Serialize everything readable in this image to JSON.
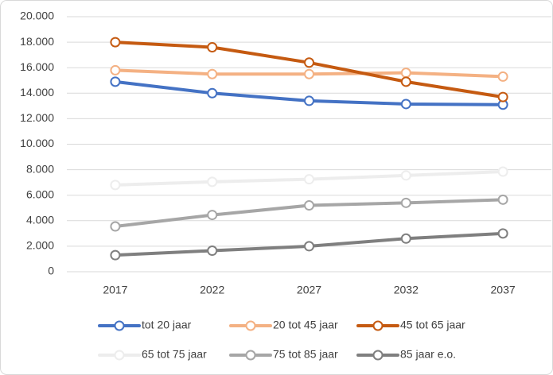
{
  "chart_data": {
    "type": "line",
    "categories": [
      "2017",
      "2022",
      "2027",
      "2032",
      "2037"
    ],
    "series": [
      {
        "name": "tot 20 jaar",
        "color": "#4472c4",
        "values": [
          14900,
          14000,
          13400,
          13150,
          13100
        ]
      },
      {
        "name": "20 tot 45 jaar",
        "color": "#f4b183",
        "values": [
          15800,
          15500,
          15500,
          15600,
          15300
        ]
      },
      {
        "name": "45 tot 65 jaar",
        "color": "#c55a11",
        "values": [
          18000,
          17600,
          16400,
          14900,
          13700
        ]
      },
      {
        "name": "65 tot 75 jaar",
        "color": "#ededed",
        "values": [
          6800,
          7050,
          7250,
          7550,
          7850
        ]
      },
      {
        "name": "75 tot 85 jaar",
        "color": "#a6a6a6",
        "values": [
          3550,
          4450,
          5200,
          5400,
          5650
        ]
      },
      {
        "name": "85 jaar e.o.",
        "color": "#7f7f7f",
        "values": [
          1300,
          1650,
          2000,
          2600,
          3000
        ]
      }
    ],
    "ylim": [
      0,
      20000
    ],
    "yticks": [
      0,
      {
        "value": 2000,
        "label": "2.000"
      },
      {
        "value": 4000,
        "label": "4.000"
      },
      {
        "value": 6000,
        "label": "6.000"
      },
      {
        "value": 8000,
        "label": "8.000"
      },
      {
        "value": 10000,
        "label": "10.000"
      },
      {
        "value": 12000,
        "label": "12.000"
      },
      {
        "value": 14000,
        "label": "14.000"
      },
      {
        "value": 16000,
        "label": "16.000"
      },
      {
        "value": 18000,
        "label": "18.000"
      },
      {
        "value": 20000,
        "label": "20.000"
      }
    ],
    "grid": true
  }
}
